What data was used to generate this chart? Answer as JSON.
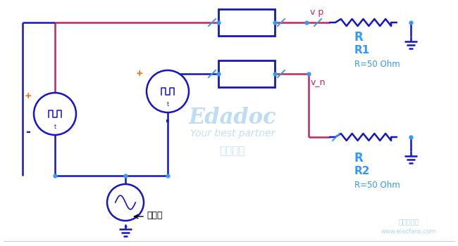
{
  "bg_color": "#ffffff",
  "blue": "#1414cc",
  "blue_light": "#3399ff",
  "pink": "#cc2255",
  "orange": "#ff6600",
  "wm_color": "#99ccee",
  "figsize": [
    6.5,
    3.5
  ],
  "dpi": 100,
  "vp_label": "v p",
  "vn_label": "v_n",
  "gnd_label": "地干扰",
  "R1_R": "R",
  "R1_name": "R1",
  "R1_val": "R=50 Ohm",
  "R2_R": "R",
  "R2_name": "R2",
  "R2_val": "R=50 Ohm",
  "wm1": "Edadoc",
  "wm2": "Your best partner",
  "wm3": "一博科技",
  "ef1": "电子发烧点",
  "ef2": "www.elecfans.com",
  "plus_label": "+",
  "minus_label": "-",
  "t_label": "t",
  "dot_label": "."
}
